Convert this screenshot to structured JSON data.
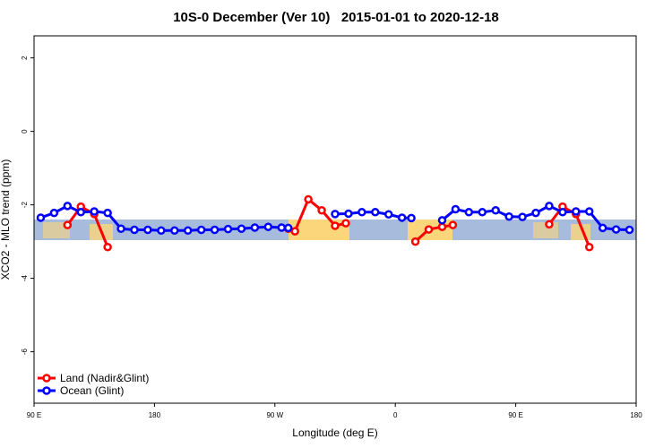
{
  "chart_data": {
    "type": "line",
    "title": "10S-0 December (Ver 10)   2015-01-01 to 2020-12-18",
    "xlabel": "Longitude (deg E)",
    "ylabel": "XCO2 - MLO trend (ppm)",
    "xlim": [
      90,
      540
    ],
    "xticks": [
      {
        "value": 90,
        "label": "90 E"
      },
      180,
      {
        "value": 270,
        "label": "90 W"
      },
      {
        "value": 360,
        "label": "0"
      },
      {
        "value": 450,
        "label": "90 E"
      },
      {
        "value": 540,
        "label": "180"
      }
    ],
    "ylim": [
      -7.4,
      2.6
    ],
    "yticks": [
      2,
      0,
      -2,
      -4,
      -6
    ],
    "legend": "bottom-left",
    "series": [
      {
        "name": "Land (Nadir&Glint)",
        "color": "#ff0000",
        "x": [
          115,
          125,
          135,
          145,
          null,
          280,
          285,
          295,
          305,
          315,
          323,
          null,
          375,
          385,
          395,
          403,
          null,
          475,
          485,
          495,
          505
        ],
        "values": [
          -2.55,
          -2.05,
          -2.25,
          -3.15,
          null,
          -2.65,
          -2.72,
          -1.85,
          -2.15,
          -2.57,
          -2.5,
          null,
          -3.0,
          -2.67,
          -2.6,
          -2.55,
          null,
          -2.53,
          -2.05,
          -2.25,
          -3.15
        ]
      },
      {
        "name": "Ocean (Glint)",
        "color": "#0000ff",
        "x": [
          95,
          105,
          115,
          125,
          135,
          145,
          155,
          165,
          175,
          185,
          195,
          205,
          215,
          225,
          235,
          245,
          255,
          265,
          275,
          280,
          null,
          315,
          325,
          335,
          345,
          355,
          365,
          372,
          null,
          395,
          405,
          415,
          425,
          435,
          445,
          455,
          465,
          475,
          485,
          495,
          505,
          515,
          525,
          535
        ],
        "values": [
          -2.35,
          -2.22,
          -2.03,
          -2.2,
          -2.18,
          -2.22,
          -2.65,
          -2.68,
          -2.68,
          -2.7,
          -2.7,
          -2.7,
          -2.68,
          -2.68,
          -2.66,
          -2.65,
          -2.62,
          -2.6,
          -2.62,
          -2.63,
          null,
          -2.25,
          -2.24,
          -2.2,
          -2.2,
          -2.26,
          -2.35,
          -2.36,
          null,
          -2.42,
          -2.12,
          -2.2,
          -2.2,
          -2.15,
          -2.32,
          -2.33,
          -2.22,
          -2.03,
          -2.2,
          -2.18,
          -2.18,
          -2.63,
          -2.67,
          -2.68
        ]
      }
    ]
  }
}
